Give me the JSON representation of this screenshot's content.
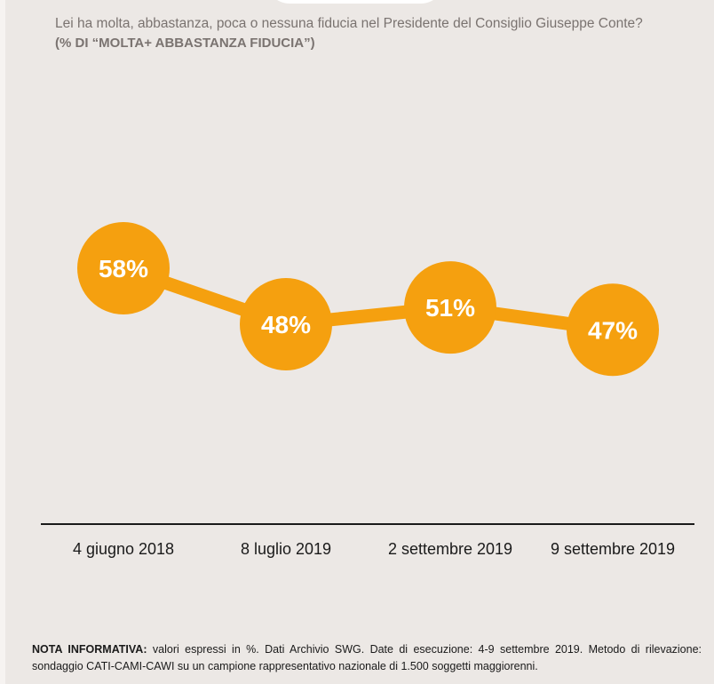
{
  "header": {
    "question": "Lei ha molta, abbastanza, poca o nessuna fiducia nel Presidente del Consiglio Giuseppe Conte?",
    "subtitle": "(% DI “MOLTA+ ABBASTANZA FIDUCIA”)"
  },
  "chart_data": {
    "type": "line",
    "categories": [
      "4 giugno 2018",
      "8 luglio 2019",
      "2 settembre 2019",
      "9 settembre 2019"
    ],
    "values": [
      58,
      48,
      51,
      47
    ],
    "data_labels": [
      "58%",
      "48%",
      "51%",
      "47%"
    ],
    "title": "",
    "xlabel": "",
    "ylabel": "",
    "grid": false,
    "legend": "none"
  },
  "colors": {
    "accent": "#f5a00f",
    "background": "#ece8e5",
    "text_gray": "#7a7370",
    "axis": "#1a1a1a"
  },
  "note": {
    "label": "NOTA INFORMATIVA:",
    "text": " valori espressi in %. Dati Archivio SWG. Date di esecuzione: 4-9 settembre 2019. Metodo di rilevazione: sondaggio CATI-CAMI-CAWI su un campione rappresentativo nazionale di 1.500 soggetti maggiorenni."
  }
}
